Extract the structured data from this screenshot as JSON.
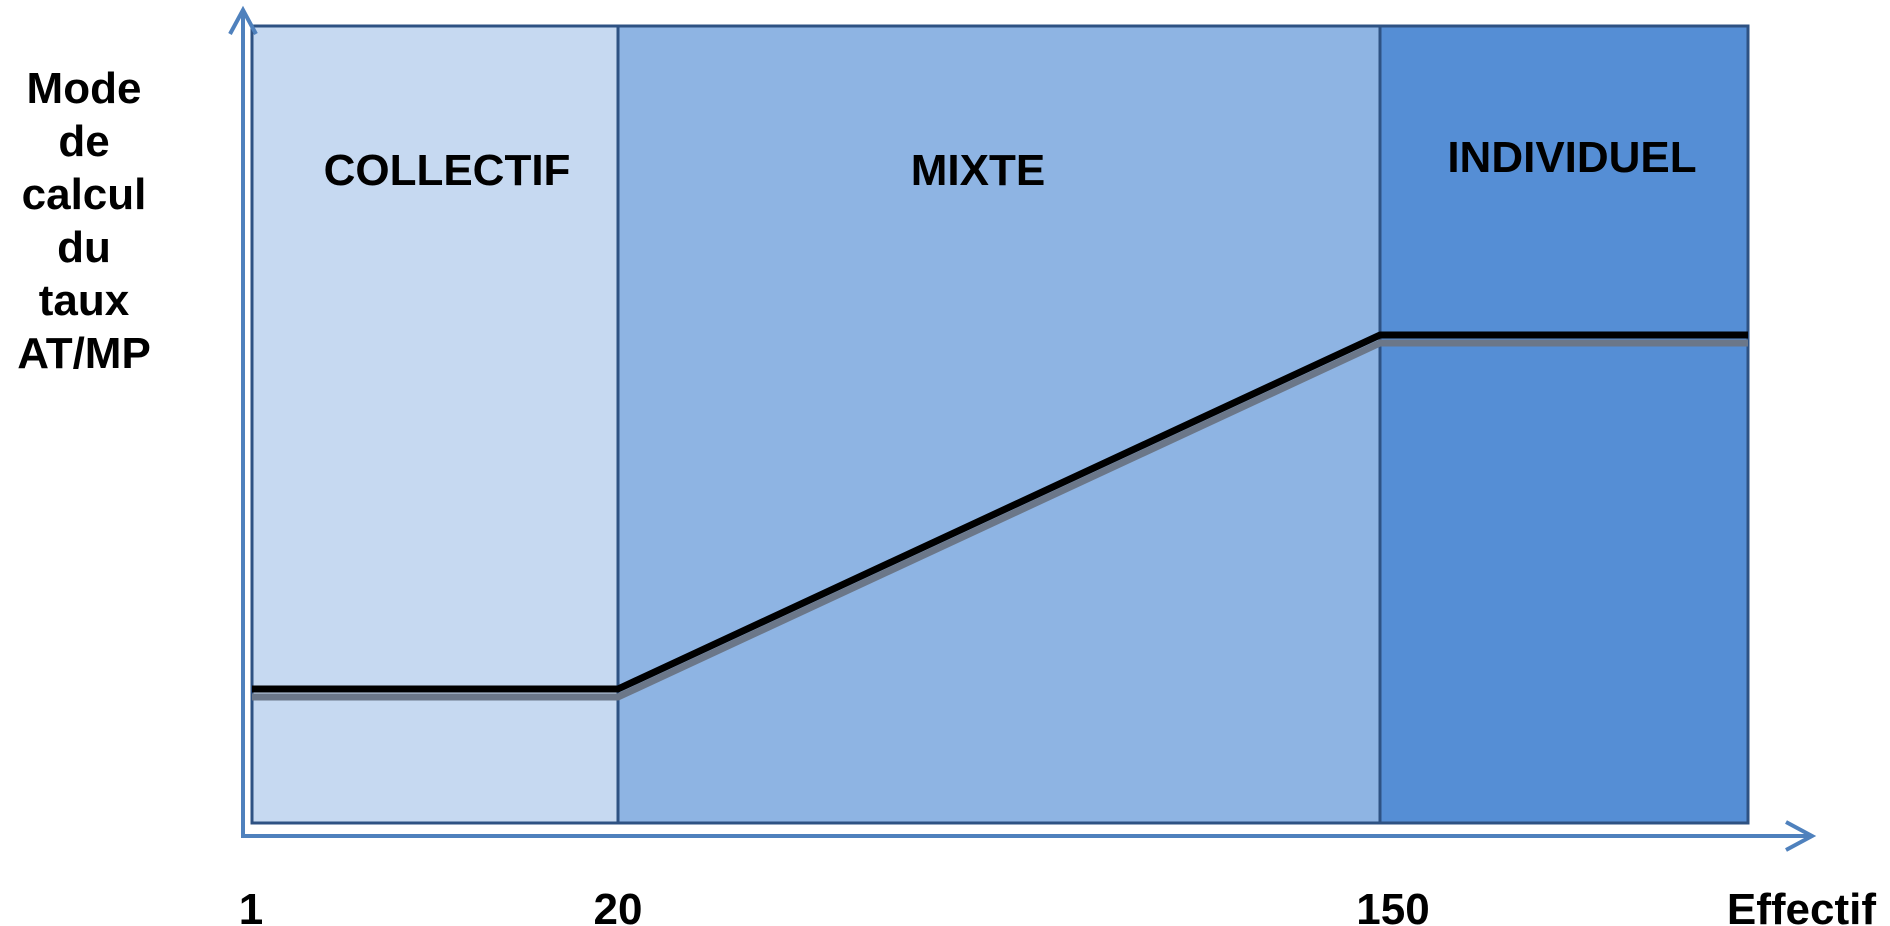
{
  "y_axis_label_lines": [
    "Mode",
    "de",
    "calcul",
    "du",
    "taux",
    "AT/MP"
  ],
  "x_axis_label": "Effectif",
  "x_ticks": [
    "1",
    "20",
    "150"
  ],
  "zones": [
    {
      "name": "COLLECTIF",
      "color": "#c6d9f1"
    },
    {
      "name": "MIXTE",
      "color": "#8eb4e3"
    },
    {
      "name": "INDIVIDUEL",
      "color": "#558ed5"
    }
  ],
  "colors": {
    "axis": "#4f81bd",
    "zone_border": "#2e5283",
    "line": "#000000",
    "line_shadow": "#6b7789"
  }
}
